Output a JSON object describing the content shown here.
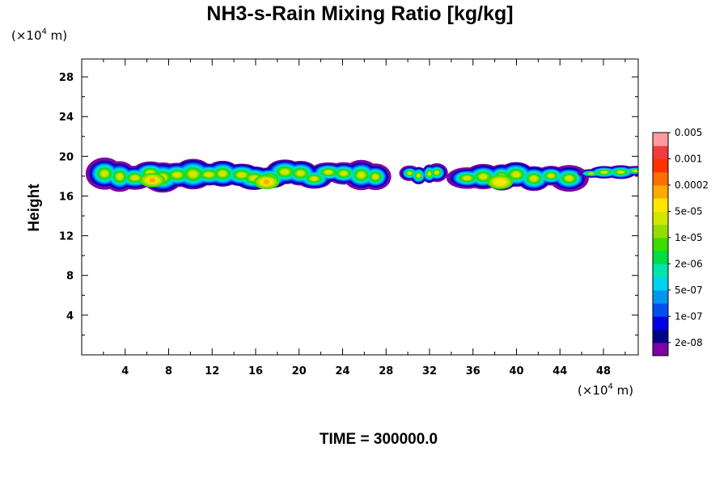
{
  "chart_data": {
    "type": "heatmap",
    "title": "NH3-s-Rain Mixing Ratio [kg/kg]",
    "xlabel": "",
    "ylabel": "Height",
    "x_unit": {
      "prefix": "(×10",
      "exp": "4",
      "suffix": " m)"
    },
    "y_unit": {
      "prefix": "(×10",
      "exp": "4",
      "suffix": " m)"
    },
    "xlim": [
      0,
      51.2
    ],
    "ylim": [
      0,
      29.8
    ],
    "x_ticks": [
      4,
      8,
      12,
      16,
      20,
      24,
      28,
      32,
      36,
      40,
      44,
      48
    ],
    "y_ticks": [
      4,
      8,
      12,
      16,
      20,
      24,
      28
    ],
    "x_tick_labels": [
      "4",
      "8",
      "12",
      "16",
      "20",
      "24",
      "28",
      "32",
      "36",
      "40",
      "44",
      "48"
    ],
    "y_tick_labels": [
      "4",
      "8",
      "12",
      "16",
      "20",
      "24",
      "28"
    ],
    "grid": false,
    "legend_position": "right",
    "colorbar": {
      "colors": [
        "#7d00a8",
        "#00008c",
        "#0000e6",
        "#0050f0",
        "#0096f0",
        "#00d2f0",
        "#00e6aa",
        "#00dc46",
        "#3cdc00",
        "#96dc00",
        "#d2e600",
        "#ffe600",
        "#ffaa00",
        "#ff6e00",
        "#ff3200",
        "#f03c3c",
        "#ff9ba0"
      ],
      "labels": [
        "2e-08",
        "1e-07",
        "5e-07",
        "2e-06",
        "1e-05",
        "5e-05",
        "0.0002",
        "0.001",
        "0.005"
      ]
    },
    "cloud_bands": [
      {
        "x_start": 0.0,
        "x_end": 29.0,
        "y_bottom": 16.3,
        "y_top": 19.9
      },
      {
        "x_start": 30.0,
        "x_end": 32.8,
        "y_bottom": 17.1,
        "y_top": 19.5
      },
      {
        "x_start": 34.8,
        "x_end": 45.5,
        "y_bottom": 16.5,
        "y_top": 19.5
      },
      {
        "x_start": 46.5,
        "x_end": 51.2,
        "y_bottom": 17.6,
        "y_top": 19.2
      }
    ],
    "peak_regions": [
      {
        "x": 6.5,
        "y": 17.6,
        "level": 12
      },
      {
        "x": 17.0,
        "y": 17.4,
        "level": 12
      },
      {
        "x": 38.5,
        "y": 17.4,
        "level": 11
      }
    ],
    "annotation": "TIME = 300000.0"
  }
}
